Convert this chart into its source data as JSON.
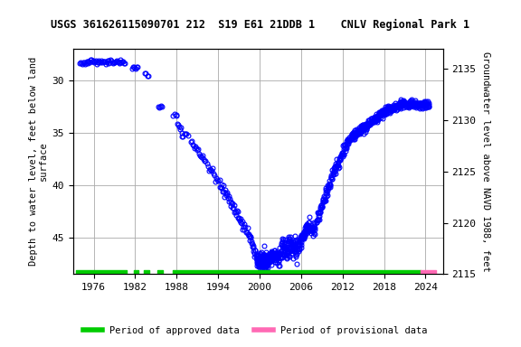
{
  "title": "USGS 361626115090701 212  S19 E61 21DDB 1    CNLV Regional Park 1",
  "ylabel_left": "Depth to water level, feet below land\nsurface",
  "ylabel_right": "Groundwater level above NAVD 1988, feet",
  "ylim_left": [
    48.5,
    27.0
  ],
  "ylim_right": [
    2115,
    2137
  ],
  "xlim": [
    1973.0,
    2026.5
  ],
  "xticks": [
    1976,
    1982,
    1988,
    1994,
    2000,
    2006,
    2012,
    2018,
    2024
  ],
  "yticks_left": [
    30,
    35,
    40,
    45
  ],
  "yticks_right": [
    2115,
    2120,
    2125,
    2130,
    2135
  ],
  "marker_color": "blue",
  "marker_size": 3.5,
  "grid_color": "#aaaaaa",
  "background_color": "#ffffff",
  "legend_approved_color": "#00cc00",
  "legend_provisional_color": "#ff69b4",
  "title_fontsize": 8.5,
  "label_fontsize": 7.5,
  "tick_fontsize": 8,
  "approved_segments": [
    [
      1973.5,
      1980.8
    ],
    [
      1981.8,
      1982.5
    ],
    [
      1983.3,
      1984.0
    ],
    [
      1985.2,
      1986.0
    ],
    [
      1987.5,
      2023.3
    ]
  ],
  "provisional_segments": [
    [
      2023.3,
      2025.5
    ]
  ]
}
